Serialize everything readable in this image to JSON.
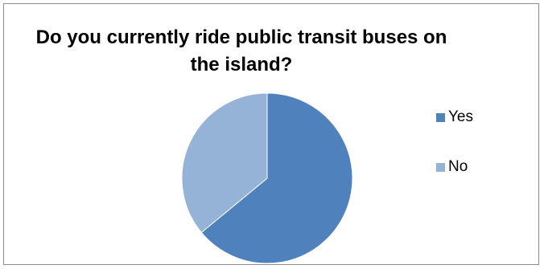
{
  "chart_data": {
    "type": "pie",
    "title": "Do you currently ride public transit buses on the island?",
    "categories": [
      "Yes",
      "No"
    ],
    "values": [
      64,
      36
    ],
    "colors": [
      "#4F81BD",
      "#95B3D7"
    ],
    "legend_position": "right"
  }
}
